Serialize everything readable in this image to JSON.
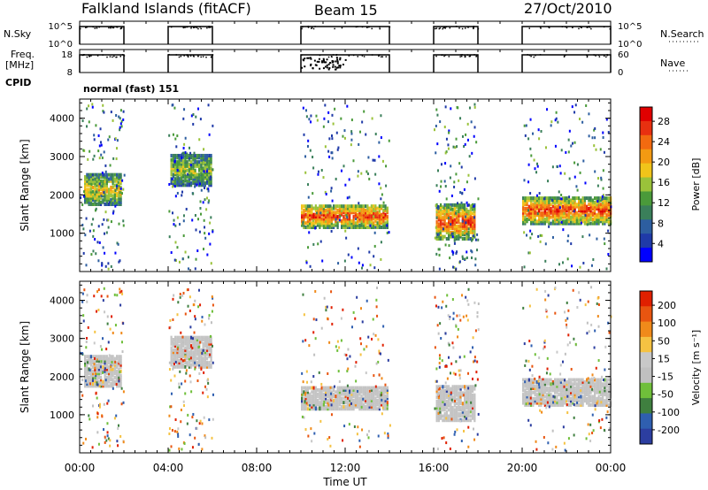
{
  "header": {
    "station": "Falkland Islands (fitACF)",
    "beam": "Beam 15",
    "date": "27/Oct/2010"
  },
  "left_labels": {
    "nsky": "N.Sky",
    "freq_line1": "Freq.",
    "freq_line2": "[MHz]",
    "cpid": "CPID"
  },
  "right_labels": {
    "nsearch": "N.Search",
    "nave": "Nave"
  },
  "cpid_text": "normal (fast) 151",
  "power_label": "Power [dB]",
  "velocity_label": "Velocity [m s⁻¹]",
  "colors": {
    "power_scale": [
      "#0000ff",
      "#1f3aa8",
      "#2d5ea0",
      "#3a7f5a",
      "#4a9a3a",
      "#9ac23a",
      "#f0c41a",
      "#f39a12",
      "#f26a10",
      "#e83010",
      "#e00000"
    ],
    "velocity_scale": [
      "#2c3ea0",
      "#2f5fb0",
      "#3f7f3f",
      "#6fbf3a",
      "#c0c0c0",
      "#c8c8c8",
      "#f5c242",
      "#f08a1a",
      "#e85510",
      "#e02000"
    ]
  },
  "chart_data": [
    {
      "type": "line",
      "title": "N.Sky / N.Search",
      "xlabel": "",
      "ylabel": "N.Sky",
      "x_ticks": [
        "00:00",
        "04:00",
        "08:00",
        "12:00",
        "16:00",
        "20:00",
        "00:00"
      ],
      "y_left_ticks": [
        "10^5",
        "10^0"
      ],
      "y_right_ticks": [
        "10^5",
        "10^0"
      ],
      "right_label": "N.Search",
      "active_intervals_hours": [
        [
          0,
          2
        ],
        [
          4,
          6
        ],
        [
          10,
          14
        ],
        [
          16,
          18
        ],
        [
          20,
          24
        ]
      ]
    },
    {
      "type": "line",
      "title": "Freq. / Nave",
      "ylabel": "Freq. [MHz]",
      "y_left_ticks": [
        "18",
        "8"
      ],
      "y_right_ticks": [
        "60",
        "0"
      ],
      "right_label": "Nave",
      "ylim": [
        8,
        18
      ],
      "active_intervals_hours": [
        [
          0,
          2
        ],
        [
          4,
          6
        ],
        [
          10,
          14
        ],
        [
          16,
          18
        ],
        [
          20,
          24
        ]
      ]
    },
    {
      "type": "heatmap",
      "title": "Power",
      "xlabel": "",
      "ylabel": "Slant Range [km]",
      "x_ticks": [
        "00:00",
        "04:00",
        "08:00",
        "12:00",
        "16:00",
        "20:00",
        "00:00"
      ],
      "xlim_hours": [
        0,
        24
      ],
      "ylim": [
        0,
        4500
      ],
      "y_ticks": [
        "1000",
        "2000",
        "3000",
        "4000"
      ],
      "colorbar_label": "Power [dB]",
      "colorbar_ticks": [
        "4",
        "8",
        "12",
        "16",
        "20",
        "24",
        "28"
      ],
      "colorbar_range": [
        0,
        30
      ],
      "regions": [
        {
          "t": [
            0.2,
            1.9
          ],
          "range": [
            1800,
            2600
          ],
          "level": "mid-high"
        },
        {
          "t": [
            4.1,
            5.9
          ],
          "range": [
            2300,
            3100
          ],
          "level": "mid"
        },
        {
          "t": [
            10.0,
            13.9
          ],
          "range": [
            1200,
            1800
          ],
          "level": "high"
        },
        {
          "t": [
            16.1,
            17.9
          ],
          "range": [
            900,
            1800
          ],
          "level": "high"
        },
        {
          "t": [
            20.0,
            24.0
          ],
          "range": [
            1300,
            2000
          ],
          "level": "high"
        }
      ]
    },
    {
      "type": "heatmap",
      "title": "Velocity",
      "xlabel": "Time UT",
      "ylabel": "Slant Range [km]",
      "x_ticks": [
        "00:00",
        "04:00",
        "08:00",
        "12:00",
        "16:00",
        "20:00",
        "00:00"
      ],
      "xlim_hours": [
        0,
        24
      ],
      "ylim": [
        0,
        4500
      ],
      "y_ticks": [
        "1000",
        "2000",
        "3000",
        "4000"
      ],
      "colorbar_label": "Velocity [m s^-1]",
      "colorbar_ticks": [
        "200",
        "100",
        "50",
        "15",
        "-15",
        "-50",
        "-100",
        "-200"
      ],
      "colorbar_range": [
        -250,
        250
      ]
    }
  ]
}
